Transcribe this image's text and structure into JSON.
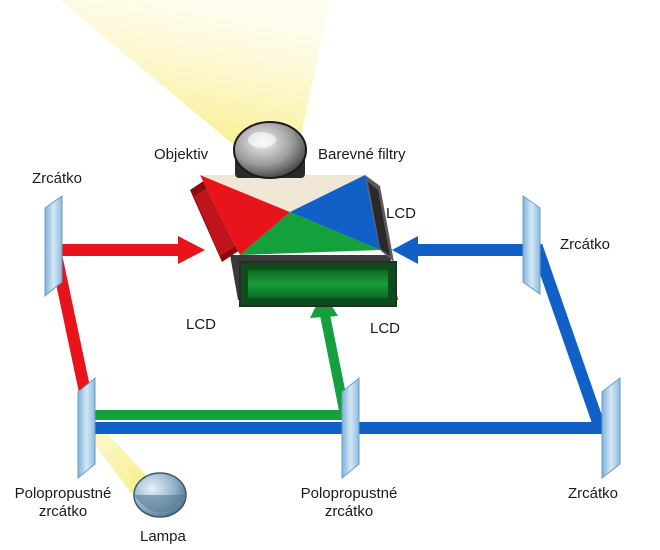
{
  "labels": {
    "lens": "Objektiv",
    "color_filters": "Barevné filtry",
    "mirror_top_left": "Zrcátko",
    "mirror_right_upper": "Zrcátko",
    "mirror_right_lower": "Zrcátko",
    "lcd_left": "LCD",
    "lcd_right": "LCD",
    "lcd_bottom": "LCD",
    "half_mirror_left_line1": "Polopropustné",
    "half_mirror_left_line2": "zrcátko",
    "half_mirror_center_line1": "Polopropustné",
    "half_mirror_center_line2": "zrcátko",
    "lamp": "Lampa"
  },
  "colors": {
    "red_beam": "#e8141c",
    "green_beam": "#14a03c",
    "blue_beam": "#1060c8",
    "light_beam": "#f7ea6a",
    "mirror": "#a9cde8"
  }
}
